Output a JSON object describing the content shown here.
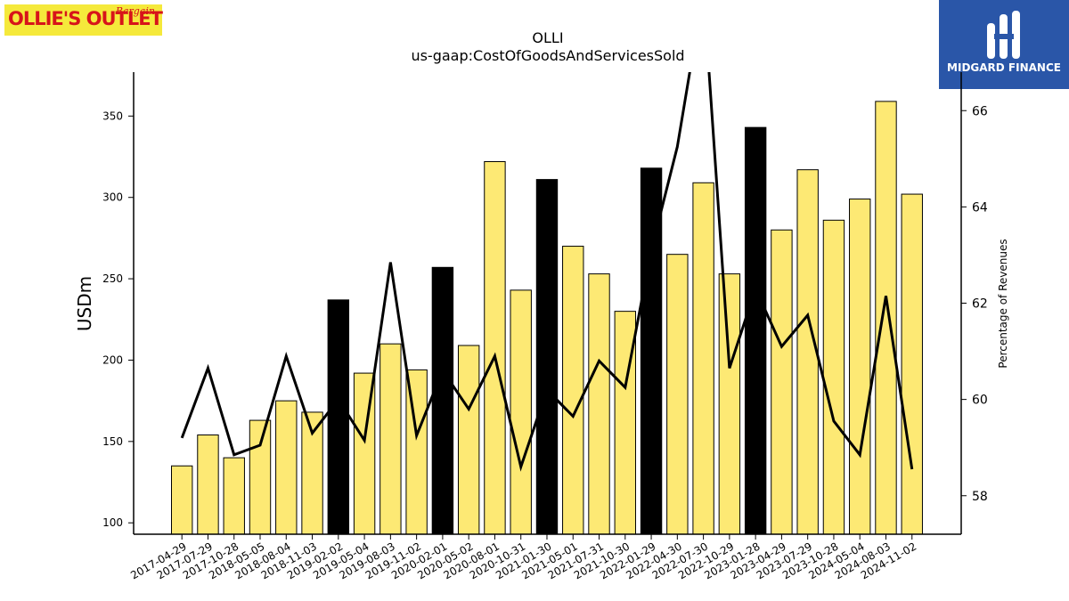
{
  "header": {
    "ticker": "OLLI",
    "metric": "us-gaap:CostOfGoodsAndServicesSold"
  },
  "logos": {
    "left": {
      "name": "ollies-bargain-outlet-logo",
      "text": "OLLIE'S OUTLET",
      "sub": "Bargain",
      "bg": "#f5e93b",
      "fg": "#d7141a"
    },
    "right": {
      "name": "midgard-finance-logo",
      "text": "MIDGARD FINANCE",
      "bg": "#2a56a8",
      "fg": "#ffffff"
    }
  },
  "chart_data": {
    "type": "bar",
    "title": "OLLI",
    "subtitle": "us-gaap:CostOfGoodsAndServicesSold",
    "ylabel": "USDm",
    "y2label": "Percentage of Revenues",
    "ylim": [
      93,
      377
    ],
    "y2lim": [
      57.2,
      66.8
    ],
    "yticks": [
      100,
      150,
      200,
      250,
      300,
      350
    ],
    "y2ticks": [
      58,
      60,
      62,
      64,
      66
    ],
    "grid": false,
    "categories": [
      "2017-04-29",
      "2017-07-29",
      "2017-10-28",
      "2018-05-05",
      "2018-08-04",
      "2018-11-03",
      "2019-02-02",
      "2019-05-04",
      "2019-08-03",
      "2019-11-02",
      "2020-02-01",
      "2020-05-02",
      "2020-08-01",
      "2020-10-31",
      "2021-01-30",
      "2021-05-01",
      "2021-07-31",
      "2021-10-30",
      "2022-01-29",
      "2022-04-30",
      "2022-07-30",
      "2022-10-29",
      "2023-01-28",
      "2023-04-29",
      "2023-07-29",
      "2023-10-28",
      "2024-05-04",
      "2024-08-03",
      "2024-11-02"
    ],
    "series": [
      {
        "type": "bar",
        "values": [
          135,
          154,
          140,
          163,
          175,
          168,
          237,
          192,
          210,
          194,
          257,
          209,
          322,
          243,
          311,
          270,
          253,
          230,
          318,
          265,
          309,
          253,
          343,
          280,
          317,
          286,
          299,
          359,
          302
        ],
        "highlight": [
          false,
          false,
          false,
          false,
          false,
          false,
          true,
          false,
          false,
          false,
          true,
          false,
          false,
          false,
          true,
          false,
          false,
          false,
          true,
          false,
          false,
          false,
          true,
          false,
          false,
          false,
          false,
          false,
          false
        ]
      },
      {
        "type": "line",
        "axis": "right",
        "values": [
          59.2,
          60.65,
          58.85,
          59.05,
          60.9,
          59.3,
          60.0,
          59.15,
          62.85,
          59.25,
          60.6,
          59.8,
          60.9,
          58.6,
          60.2,
          59.65,
          60.8,
          60.25,
          63.1,
          65.25,
          68.5,
          60.65,
          62.3,
          61.1,
          61.75,
          59.55,
          58.85,
          62.15,
          58.55
        ]
      }
    ],
    "colors": {
      "bar": "#fde974",
      "bar_highlight": "#000000",
      "line": "#000000"
    }
  }
}
